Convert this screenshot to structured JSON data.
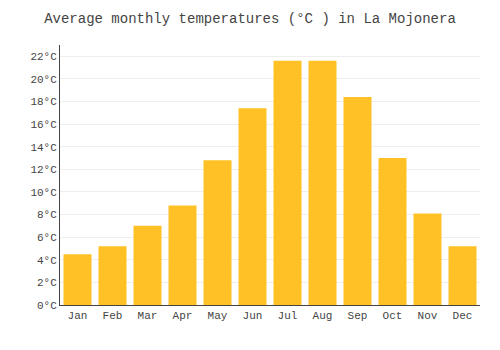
{
  "chart_data": {
    "type": "bar",
    "title": "Average monthly temperatures (°C ) in La Mojonera",
    "categories": [
      "Jan",
      "Feb",
      "Mar",
      "Apr",
      "May",
      "Jun",
      "Jul",
      "Aug",
      "Sep",
      "Oct",
      "Nov",
      "Dec"
    ],
    "values": [
      4.5,
      5.2,
      7.0,
      8.8,
      12.8,
      17.4,
      21.6,
      21.6,
      18.4,
      13.0,
      8.1,
      5.2
    ],
    "color": "#FFC125",
    "ylim": [
      0,
      23
    ],
    "yticks": [
      {
        "value": 0,
        "label": "0°C"
      },
      {
        "value": 2,
        "label": "2°C"
      },
      {
        "value": 4,
        "label": "4°C"
      },
      {
        "value": 6,
        "label": "6°C"
      },
      {
        "value": 8,
        "label": "8°C"
      },
      {
        "value": 10,
        "label": "10°C"
      },
      {
        "value": 12,
        "label": "12°C"
      },
      {
        "value": 14,
        "label": "14°C"
      },
      {
        "value": 16,
        "label": "16°C"
      },
      {
        "value": 18,
        "label": "18°C"
      },
      {
        "value": 20,
        "label": "20°C"
      },
      {
        "value": 22,
        "label": "22°C"
      }
    ],
    "grid": true
  }
}
